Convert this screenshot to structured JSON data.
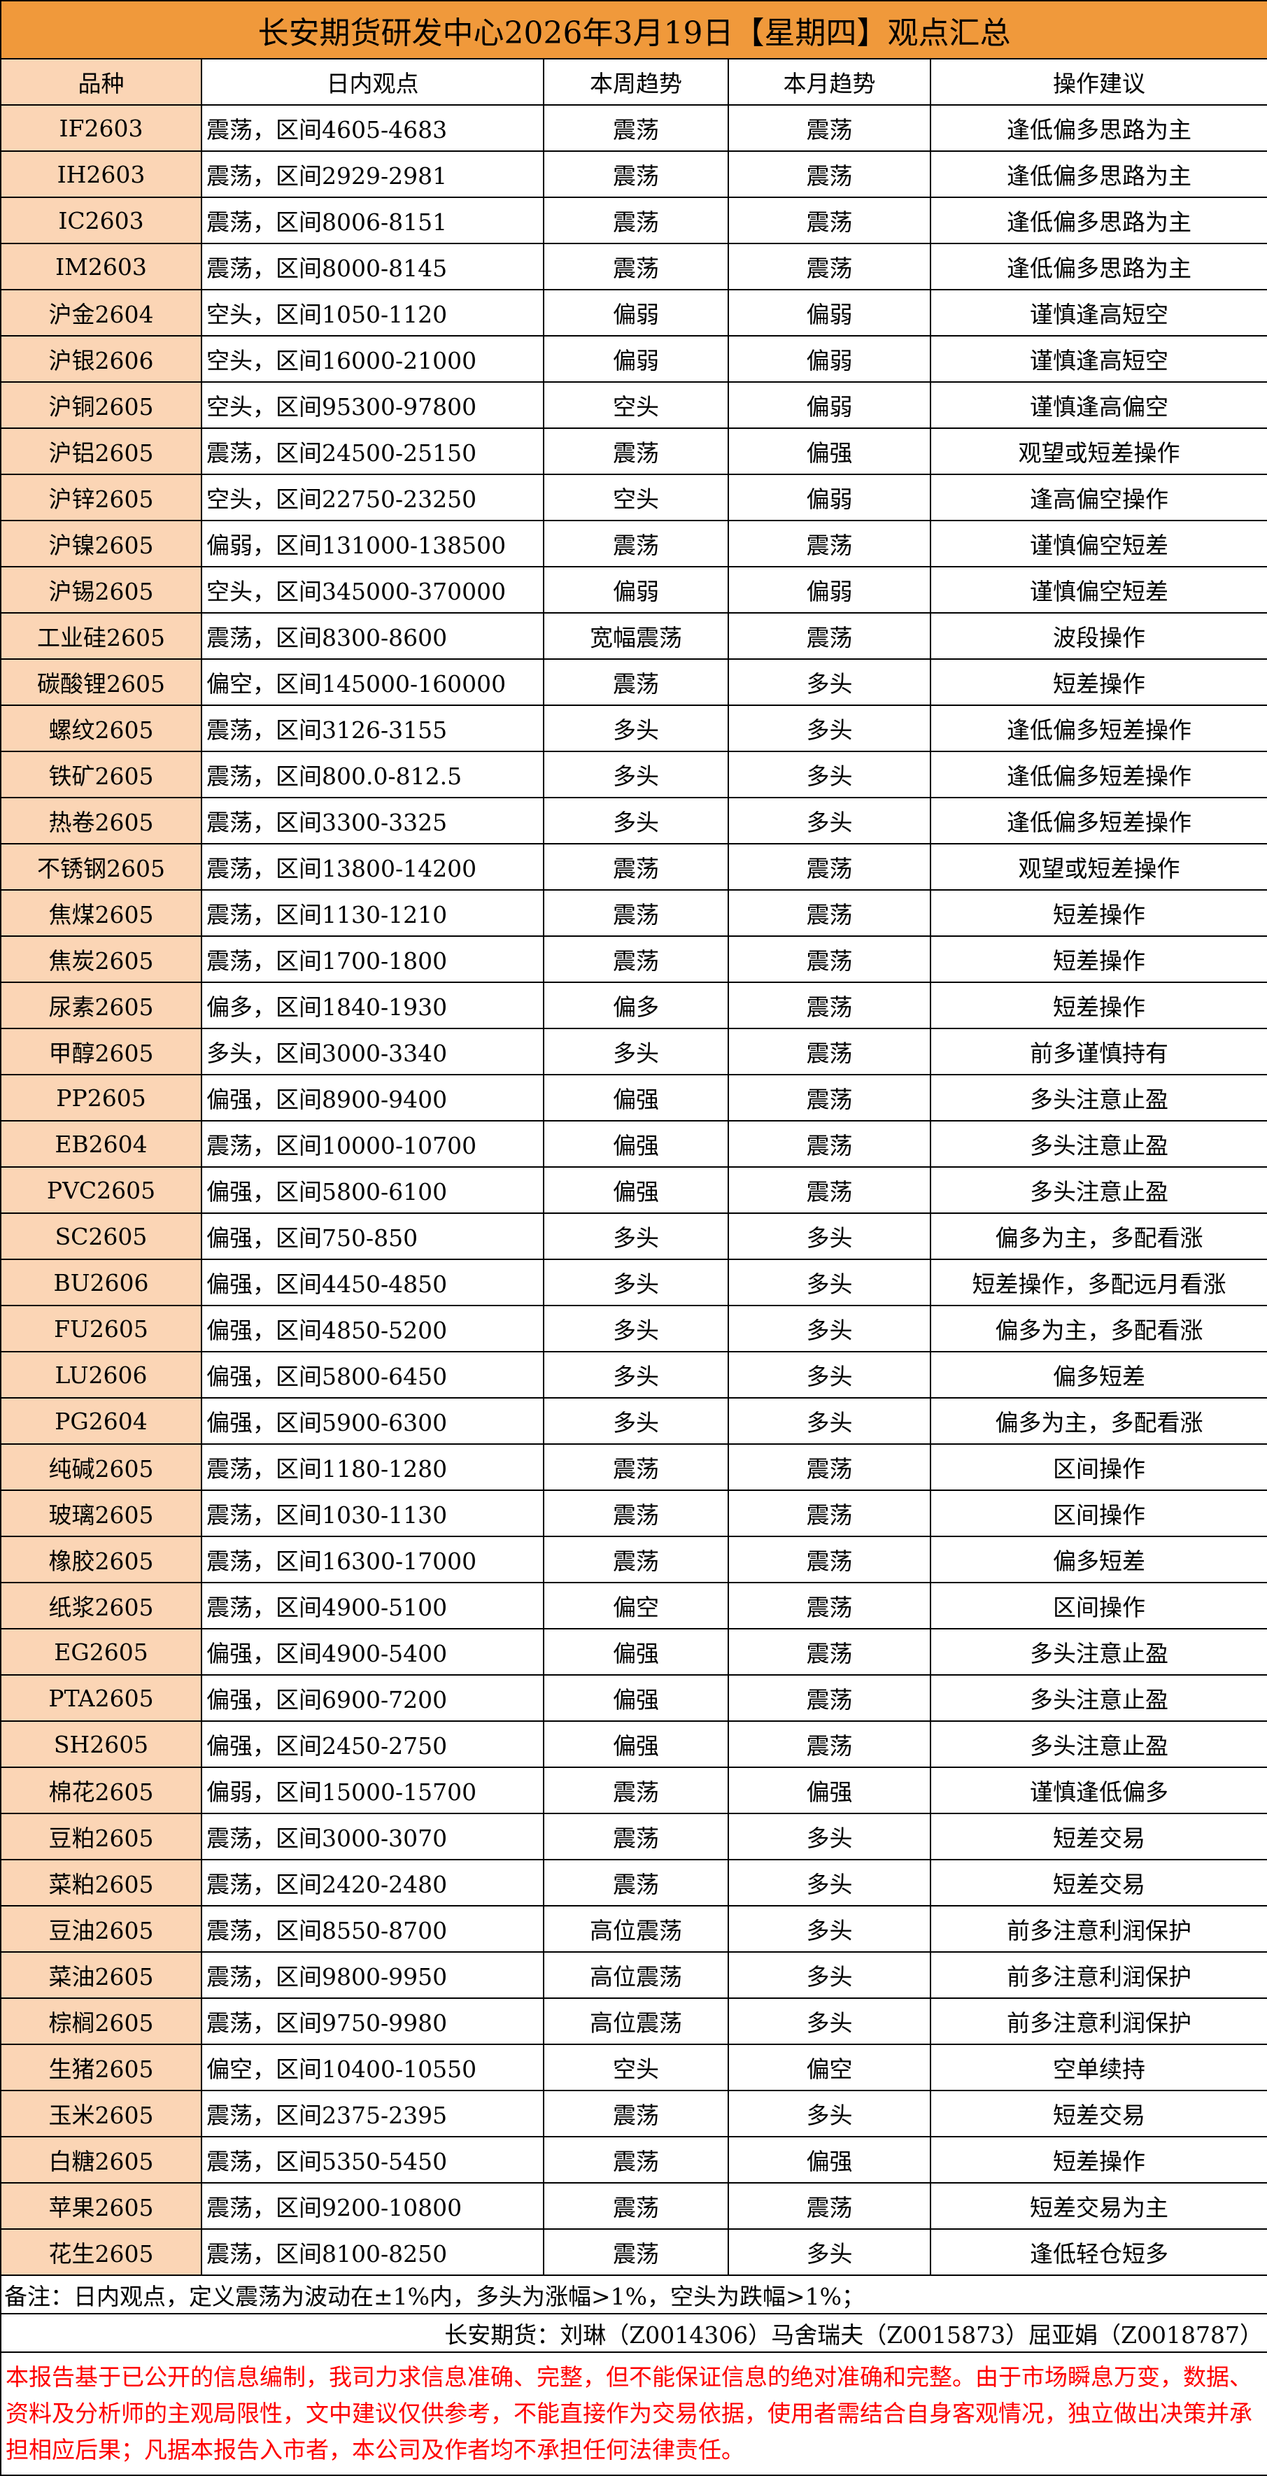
{
  "title": "长安期货研发中心2026年3月19日【星期四】观点汇总",
  "colors": {
    "title_bg": "#f0993b",
    "name_bg": "#fbd5b5",
    "disclaimer": "#ff0000"
  },
  "headers": [
    "品种",
    "日内观点",
    "本周趋势",
    "本月趋势",
    "操作建议"
  ],
  "rows": [
    [
      "IF2603",
      "震荡，区间4605-4683",
      "震荡",
      "震荡",
      "逢低偏多思路为主"
    ],
    [
      "IH2603",
      "震荡，区间2929-2981",
      "震荡",
      "震荡",
      "逢低偏多思路为主"
    ],
    [
      "IC2603",
      "震荡，区间8006-8151",
      "震荡",
      "震荡",
      "逢低偏多思路为主"
    ],
    [
      "IM2603",
      "震荡，区间8000-8145",
      "震荡",
      "震荡",
      "逢低偏多思路为主"
    ],
    [
      "沪金2604",
      "空头，区间1050-1120",
      "偏弱",
      "偏弱",
      "谨慎逢高短空"
    ],
    [
      "沪银2606",
      "空头，区间16000-21000",
      "偏弱",
      "偏弱",
      "谨慎逢高短空"
    ],
    [
      "沪铜2605",
      "空头，区间95300-97800",
      "空头",
      "偏弱",
      "谨慎逢高偏空"
    ],
    [
      "沪铝2605",
      "震荡，区间24500-25150",
      "震荡",
      "偏强",
      "观望或短差操作"
    ],
    [
      "沪锌2605",
      "空头，区间22750-23250",
      "空头",
      "偏弱",
      "逢高偏空操作"
    ],
    [
      "沪镍2605",
      "偏弱，区间131000-138500",
      "震荡",
      "震荡",
      "谨慎偏空短差"
    ],
    [
      "沪锡2605",
      "空头，区间345000-370000",
      "偏弱",
      "偏弱",
      "谨慎偏空短差"
    ],
    [
      "工业硅2605",
      "震荡，区间8300-8600",
      "宽幅震荡",
      "震荡",
      "波段操作"
    ],
    [
      "碳酸锂2605",
      "偏空，区间145000-160000",
      "震荡",
      "多头",
      "短差操作"
    ],
    [
      "螺纹2605",
      "震荡，区间3126-3155",
      "多头",
      "多头",
      "逢低偏多短差操作"
    ],
    [
      "铁矿2605",
      "震荡，区间800.0-812.5",
      "多头",
      "多头",
      "逢低偏多短差操作"
    ],
    [
      "热卷2605",
      "震荡，区间3300-3325",
      "多头",
      "多头",
      "逢低偏多短差操作"
    ],
    [
      "不锈钢2605",
      "震荡，区间13800-14200",
      "震荡",
      "震荡",
      "观望或短差操作"
    ],
    [
      "焦煤2605",
      "震荡，区间1130-1210",
      "震荡",
      "震荡",
      "短差操作"
    ],
    [
      "焦炭2605",
      "震荡，区间1700-1800",
      "震荡",
      "震荡",
      "短差操作"
    ],
    [
      "尿素2605",
      "偏多，区间1840-1930",
      "偏多",
      "震荡",
      "短差操作"
    ],
    [
      "甲醇2605",
      "多头，区间3000-3340",
      "多头",
      "震荡",
      "前多谨慎持有"
    ],
    [
      "PP2605",
      "偏强，区间8900-9400",
      "偏强",
      "震荡",
      "多头注意止盈"
    ],
    [
      "EB2604",
      "震荡，区间10000-10700",
      "偏强",
      "震荡",
      "多头注意止盈"
    ],
    [
      "PVC2605",
      "偏强，区间5800-6100",
      "偏强",
      "震荡",
      "多头注意止盈"
    ],
    [
      "SC2605",
      "偏强，区间750-850",
      "多头",
      "多头",
      "偏多为主，多配看涨"
    ],
    [
      "BU2606",
      "偏强，区间4450-4850",
      "多头",
      "多头",
      "短差操作，多配远月看涨"
    ],
    [
      "FU2605",
      "偏强，区间4850-5200",
      "多头",
      "多头",
      "偏多为主，多配看涨"
    ],
    [
      "LU2606",
      "偏强，区间5800-6450",
      "多头",
      "多头",
      "偏多短差"
    ],
    [
      "PG2604",
      "偏强，区间5900-6300",
      "多头",
      "多头",
      "偏多为主，多配看涨"
    ],
    [
      "纯碱2605",
      "震荡，区间1180-1280",
      "震荡",
      "震荡",
      "区间操作"
    ],
    [
      "玻璃2605",
      "震荡，区间1030-1130",
      "震荡",
      "震荡",
      "区间操作"
    ],
    [
      "橡胶2605",
      "震荡，区间16300-17000",
      "震荡",
      "震荡",
      "偏多短差"
    ],
    [
      "纸浆2605",
      "震荡，区间4900-5100",
      "偏空",
      "震荡",
      "区间操作"
    ],
    [
      "EG2605",
      "偏强，区间4900-5400",
      "偏强",
      "震荡",
      "多头注意止盈"
    ],
    [
      "PTA2605",
      "偏强，区间6900-7200",
      "偏强",
      "震荡",
      "多头注意止盈"
    ],
    [
      "SH2605",
      "偏强，区间2450-2750",
      "偏强",
      "震荡",
      "多头注意止盈"
    ],
    [
      "棉花2605",
      "偏弱，区间15000-15700",
      "震荡",
      "偏强",
      "谨慎逢低偏多"
    ],
    [
      "豆粕2605",
      "震荡，区间3000-3070",
      "震荡",
      "多头",
      "短差交易"
    ],
    [
      "菜粕2605",
      "震荡，区间2420-2480",
      "震荡",
      "多头",
      "短差交易"
    ],
    [
      "豆油2605",
      "震荡，区间8550-8700",
      "高位震荡",
      "多头",
      "前多注意利润保护"
    ],
    [
      "菜油2605",
      "震荡，区间9800-9950",
      "高位震荡",
      "多头",
      "前多注意利润保护"
    ],
    [
      "棕榈2605",
      "震荡，区间9750-9980",
      "高位震荡",
      "多头",
      "前多注意利润保护"
    ],
    [
      "生猪2605",
      "偏空，区间10400-10550",
      "空头",
      "偏空",
      "空单续持"
    ],
    [
      "玉米2605",
      "震荡，区间2375-2395",
      "震荡",
      "多头",
      "短差交易"
    ],
    [
      "白糖2605",
      "震荡，区间5350-5450",
      "震荡",
      "偏强",
      "短差操作"
    ],
    [
      "苹果2605",
      "震荡，区间9200-10800",
      "震荡",
      "震荡",
      "短差交易为主"
    ],
    [
      "花生2605",
      "震荡，区间8100-8250",
      "震荡",
      "多头",
      "逢低轻仓短多"
    ]
  ],
  "note": "备注：日内观点，定义震荡为波动在±1%内，多头为涨幅>1%，空头为跌幅>1%；",
  "authors": "长安期货：刘琳（Z0014306）马舍瑞夫（Z0015873）屈亚娟（Z0018787）",
  "disclaimer": "本报告基于已公开的信息编制，我司力求信息准确、完整，但不能保证信息的绝对准确和完整。由于市场瞬息万变，数据、资料及分析师的主观局限性，文中建议仅供参考，不能直接作为交易依据，使用者需结合自身客观情况，独立做出决策并承担相应后果；凡据本报告入市者，本公司及作者均不承担任何法律责任。"
}
